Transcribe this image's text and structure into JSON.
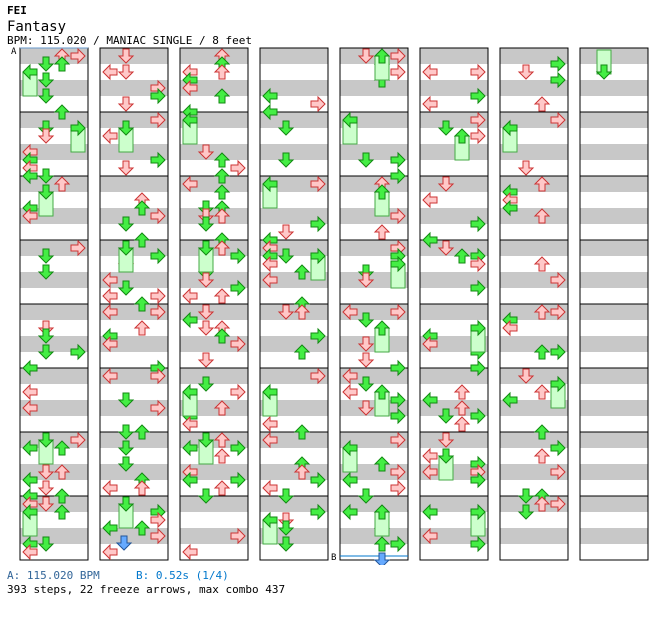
{
  "song": {
    "artist": "FEI",
    "title": "Fantasy",
    "meta_line": "BPM: 115.020 / MANIAC SINGLE / 8 feet"
  },
  "markers": {
    "a_label": "A",
    "b_label": "B"
  },
  "legend": {
    "a_text": "A: 115.020 BPM",
    "b_text": "B: 0.52s (1/4)"
  },
  "summary": "393 steps, 22 freeze arrows, max combo 437",
  "colors": {
    "stripe": "#c8c8c8",
    "note_red_fill": "#ffc8c8",
    "note_red_stroke": "#cc3333",
    "note_green_fill": "#44ee44",
    "note_green_stroke": "#118811",
    "freeze_fill": "#ccffcc",
    "freeze_stroke": "#44aa44",
    "b_marker_color": "#0077cc"
  },
  "chart_data": {
    "type": "table",
    "columns": 8,
    "measures_per_column": 8,
    "total_measures": 57,
    "lanes": [
      "left",
      "down",
      "up",
      "right"
    ],
    "bpm": 115.02,
    "steps": 393,
    "freeze_arrows": 22,
    "max_combo": 437
  }
}
